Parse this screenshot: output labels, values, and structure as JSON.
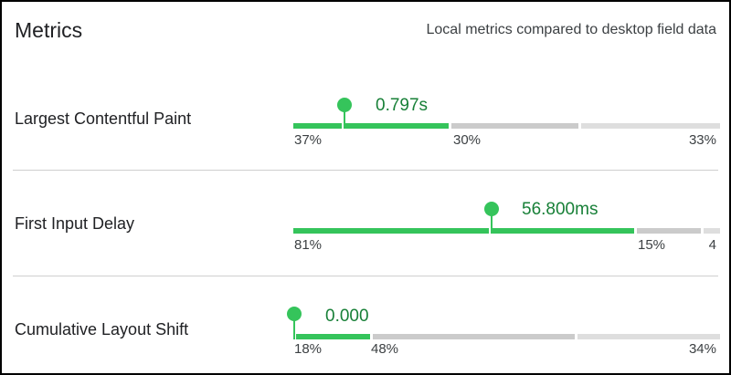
{
  "header": {
    "title": "Metrics",
    "subtitle": "Local metrics compared to desktop field data"
  },
  "colors": {
    "good": "#35c45b",
    "needs_improvement": "#cbcbcb",
    "poor": "#dedede",
    "value_text": "#188038"
  },
  "metrics": [
    {
      "label": "Largest Contentful Paint",
      "value": "0.797s",
      "distribution": {
        "good": "37%",
        "needs_improvement": "30%",
        "poor": "33%"
      }
    },
    {
      "label": "First Input Delay",
      "value": "56.800ms",
      "distribution": {
        "good": "81%",
        "needs_improvement": "15%",
        "poor": "4"
      }
    },
    {
      "label": "Cumulative Layout Shift",
      "value": "0.000",
      "distribution": {
        "good": "18%",
        "needs_improvement": "48%",
        "poor": "34%"
      }
    }
  ]
}
